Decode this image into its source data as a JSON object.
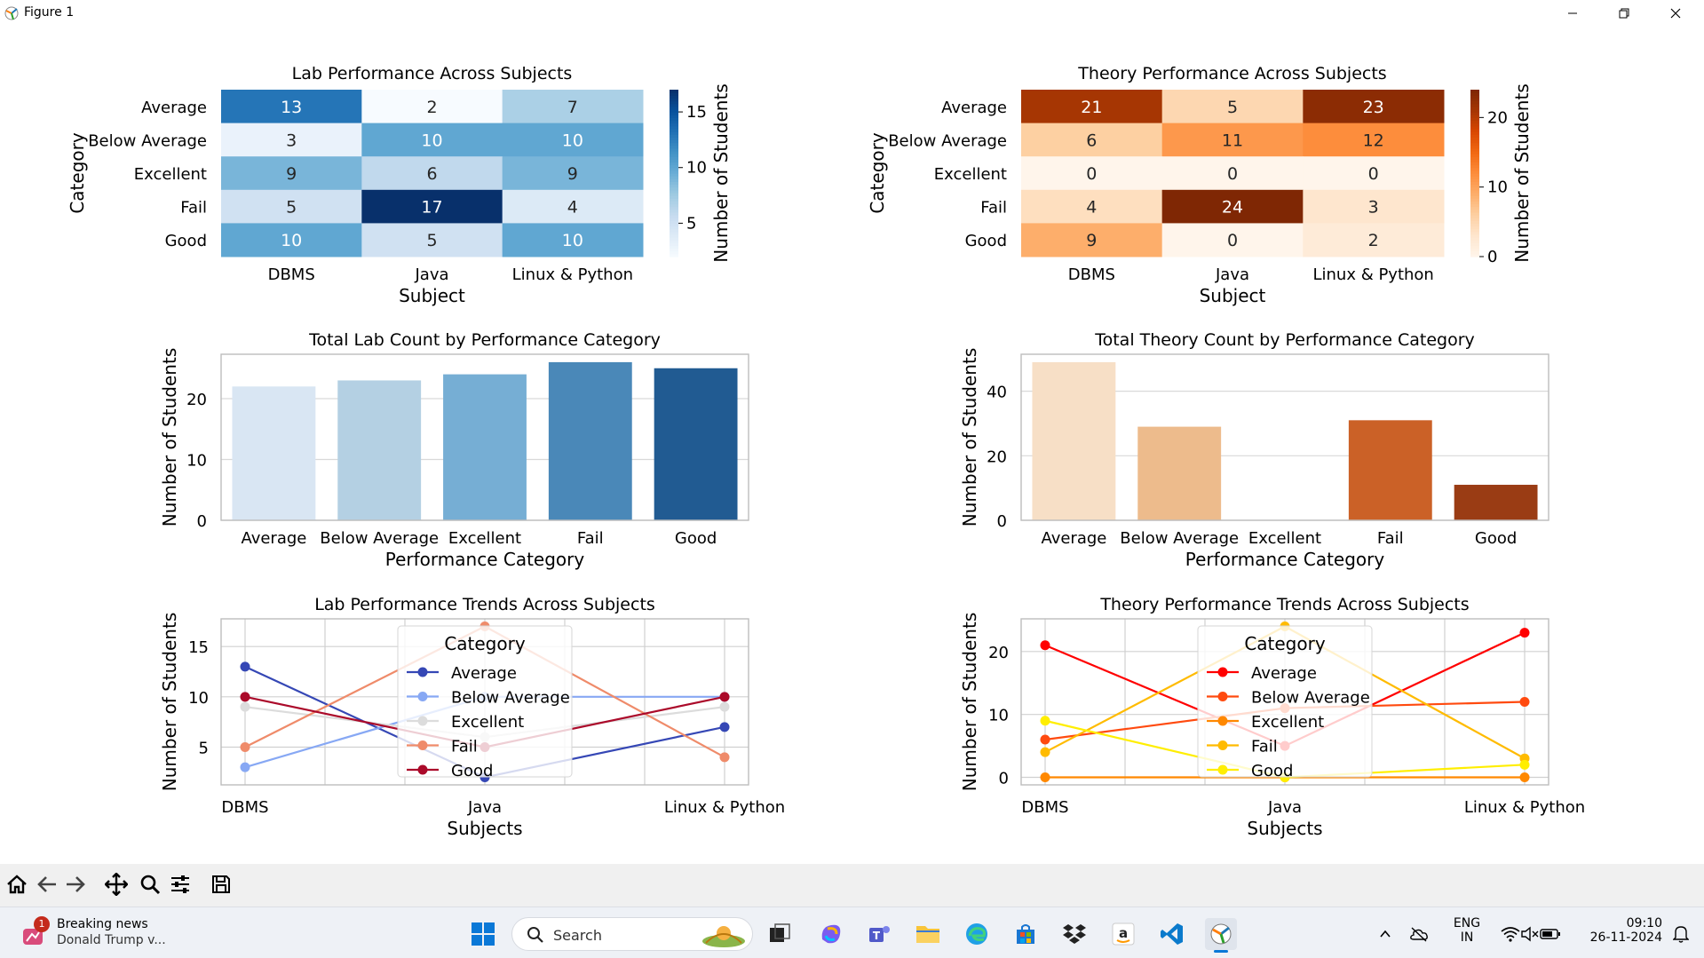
{
  "window": {
    "title": "Figure 1"
  },
  "colors": {
    "blues_dark": "#08306b",
    "oranges_dark": "#7f2704"
  },
  "heatmap_lab": {
    "title": "Lab Performance Across Subjects",
    "xlabel": "Subject",
    "ylabel": "Category",
    "cbar_label": "Number of Students",
    "rows": [
      "Average",
      "Below Average",
      "Excellent",
      "Fail",
      "Good"
    ],
    "cols": [
      "DBMS",
      "Java",
      "Linux & Python"
    ],
    "values": [
      [
        13,
        2,
        7
      ],
      [
        3,
        10,
        10
      ],
      [
        9,
        6,
        9
      ],
      [
        5,
        17,
        4
      ],
      [
        10,
        5,
        10
      ]
    ],
    "cbar_ticks": [
      5,
      10,
      15
    ],
    "vmin": 2,
    "vmax": 17
  },
  "heatmap_theory": {
    "title": "Theory Performance Across Subjects",
    "xlabel": "Subject",
    "ylabel": "Category",
    "cbar_label": "Number of Students",
    "rows": [
      "Average",
      "Below Average",
      "Excellent",
      "Fail",
      "Good"
    ],
    "cols": [
      "DBMS",
      "Java",
      "Linux & Python"
    ],
    "values": [
      [
        21,
        5,
        23
      ],
      [
        6,
        11,
        12
      ],
      [
        0,
        0,
        0
      ],
      [
        4,
        24,
        3
      ],
      [
        9,
        0,
        2
      ]
    ],
    "cbar_ticks": [
      0,
      10,
      20
    ],
    "vmin": 0,
    "vmax": 24
  },
  "bar_lab": {
    "type": "bar",
    "title": "Total Lab Count by Performance Category",
    "xlabel": "Performance Category",
    "ylabel": "Number of Students",
    "categories": [
      "Average",
      "Below Average",
      "Excellent",
      "Fail",
      "Good"
    ],
    "values": [
      22,
      23,
      24,
      26,
      25
    ],
    "yticks": [
      0,
      10,
      20
    ],
    "ylim": [
      0,
      27.3
    ],
    "colors": [
      "#d9e6f3",
      "#b4d0e3",
      "#76aed4",
      "#4a88b8",
      "#215b92"
    ]
  },
  "bar_theory": {
    "type": "bar",
    "title": "Total Theory Count by Performance Category",
    "xlabel": "Performance Category",
    "ylabel": "Number of Students",
    "categories": [
      "Average",
      "Below Average",
      "Excellent",
      "Fail",
      "Good"
    ],
    "values": [
      49,
      29,
      0,
      31,
      11
    ],
    "yticks": [
      0,
      20,
      40
    ],
    "ylim": [
      0,
      51.45
    ],
    "colors": [
      "#f7dfc6",
      "#edbb8c",
      "#f1954d",
      "#cb6127",
      "#9a3c14"
    ]
  },
  "line_lab": {
    "type": "line",
    "title": "Lab Performance Trends Across Subjects",
    "xlabel": "Subjects",
    "ylabel": "Number of Students",
    "x": [
      "DBMS",
      "Java",
      "Linux & Python"
    ],
    "yticks": [
      5,
      10,
      15
    ],
    "ylim": [
      1.25,
      17.75
    ],
    "legend_title": "Category",
    "series": [
      {
        "name": "Average",
        "values": [
          13,
          2,
          7
        ],
        "color": "#3547b5"
      },
      {
        "name": "Below Average",
        "values": [
          3,
          10,
          10
        ],
        "color": "#87a8f4"
      },
      {
        "name": "Excellent",
        "values": [
          9,
          6,
          9
        ],
        "color": "#dcdcdc"
      },
      {
        "name": "Fail",
        "values": [
          5,
          17,
          4
        ],
        "color": "#ef8b6a"
      },
      {
        "name": "Good",
        "values": [
          10,
          5,
          10
        ],
        "color": "#ab0a2a"
      }
    ]
  },
  "line_theory": {
    "type": "line",
    "title": "Theory Performance Trends Across Subjects",
    "xlabel": "Subjects",
    "ylabel": "Number of Students",
    "x": [
      "DBMS",
      "Java",
      "Linux & Python"
    ],
    "yticks": [
      0,
      10,
      20
    ],
    "ylim": [
      -1.2,
      25.2
    ],
    "legend_title": "Category",
    "series": [
      {
        "name": "Average",
        "values": [
          21,
          5,
          23
        ],
        "color": "#ff0000"
      },
      {
        "name": "Below Average",
        "values": [
          6,
          11,
          12
        ],
        "color": "#ff4a0f"
      },
      {
        "name": "Excellent",
        "values": [
          0,
          0,
          0
        ],
        "color": "#ff8800"
      },
      {
        "name": "Fail",
        "values": [
          4,
          24,
          3
        ],
        "color": "#ffbb00"
      },
      {
        "name": "Good",
        "values": [
          9,
          0,
          2
        ],
        "color": "#ffee00"
      }
    ]
  },
  "taskbar": {
    "news_title": "Breaking news",
    "news_sub": "Donald Trump v...",
    "news_badge": "1",
    "search_placeholder": "Search",
    "lang_top": "ENG",
    "lang_bottom": "IN",
    "time": "09:10",
    "date": "26-11-2024"
  }
}
